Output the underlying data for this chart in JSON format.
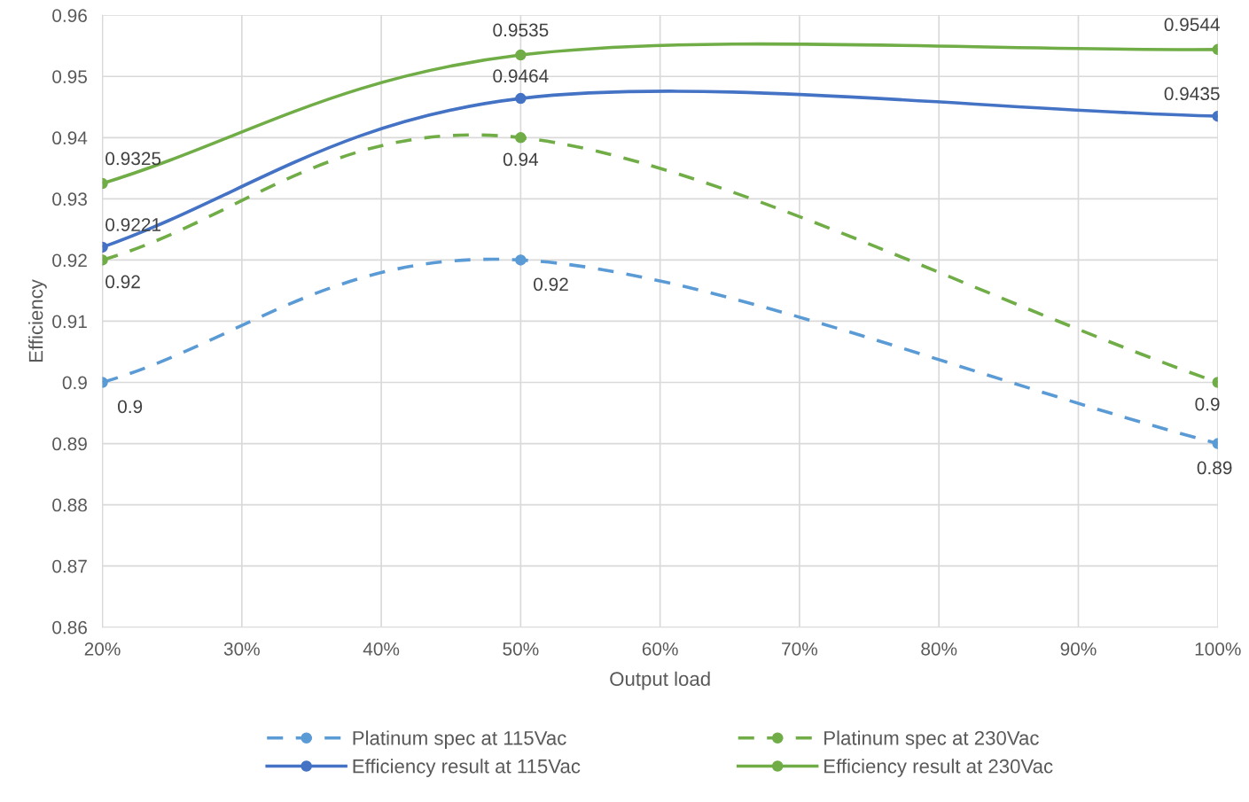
{
  "chart_data": {
    "type": "line",
    "xlabel": "Output load",
    "ylabel": "Efficiency",
    "x": [
      20,
      50,
      100
    ],
    "series": [
      {
        "name": "Platinum spec at 115Vac",
        "color": "#5b9bd5",
        "values": [
          0.9,
          0.92,
          0.89
        ],
        "line_style": "dashed"
      },
      {
        "name": "Platinum spec at 230Vac",
        "color": "#70ad47",
        "values": [
          0.92,
          0.94,
          0.9
        ],
        "line_style": "dashed"
      },
      {
        "name": "Efficiency result at 115Vac",
        "color": "#4472c4",
        "values": [
          0.9221,
          0.9464,
          0.9435
        ],
        "line_style": "solid"
      },
      {
        "name": "Efficiency result at 230Vac",
        "color": "#70ad47",
        "values": [
          0.9325,
          0.9535,
          0.9544
        ],
        "line_style": "solid"
      }
    ],
    "xlim": [
      20,
      100
    ],
    "xticks": [
      {
        "value": 20,
        "label": "20%"
      },
      {
        "value": 30,
        "label": "30%"
      },
      {
        "value": 40,
        "label": "40%"
      },
      {
        "value": 50,
        "label": "50%"
      },
      {
        "value": 60,
        "label": "60%"
      },
      {
        "value": 70,
        "label": "70%"
      },
      {
        "value": 80,
        "label": "80%"
      },
      {
        "value": 90,
        "label": "90%"
      },
      {
        "value": 100,
        "label": "100%"
      }
    ],
    "ylim": [
      0.86,
      0.96
    ],
    "yticks": [
      0.86,
      0.87,
      0.88,
      0.89,
      0.9,
      0.91,
      0.92,
      0.93,
      0.94,
      0.95,
      0.96
    ],
    "grid": true,
    "legend": "bottom",
    "marker": "circle",
    "data_labels": true
  }
}
